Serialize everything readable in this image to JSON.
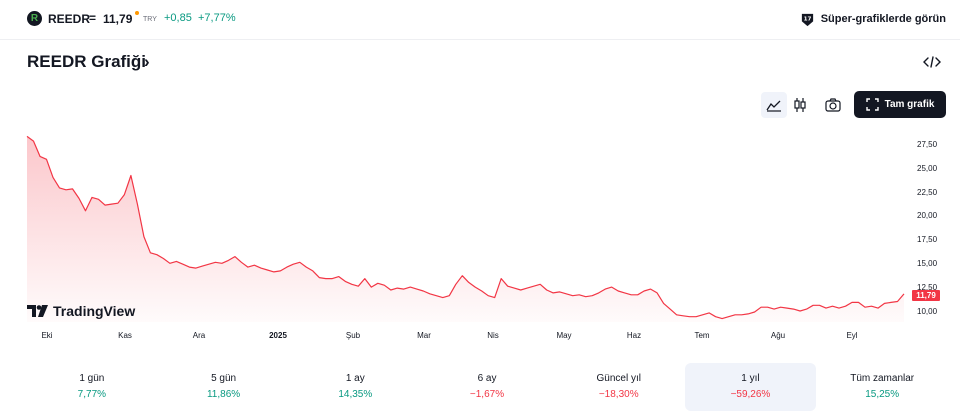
{
  "header": {
    "logo_letter": "R",
    "ticker": "REEDR",
    "equals": "=",
    "price": "11,79",
    "currency": "TRY",
    "change": "+0,85",
    "change_pct": "+7,77%",
    "super_chart_link": "Süper-grafiklerde görün"
  },
  "title": {
    "label": "REEDR Grafiği",
    "chevron": "›"
  },
  "toolbar": {
    "full_chart_label": "Tam grafik",
    "icons": [
      "area-chart-icon",
      "candlestick-icon",
      "camera-icon",
      "fullscreen-icon",
      "embed-code-icon"
    ]
  },
  "chart_data": {
    "type": "area",
    "title": "",
    "x_tick_labels": [
      "Eki",
      "Kas",
      "Ara",
      "2025",
      "Şub",
      "Mar",
      "Nis",
      "May",
      "Haz",
      "Tem",
      "Ağu",
      "Eyl"
    ],
    "y_tick_labels": [
      "27,50",
      "25,00",
      "22,50",
      "20,00",
      "17,50",
      "15,00",
      "12,50",
      "10,00"
    ],
    "ylim": [
      8.6,
      28.5
    ],
    "series": [
      {
        "values": [
          28.3,
          27.8,
          26.2,
          25.9,
          24.0,
          22.9,
          22.7,
          22.8,
          21.8,
          20.5,
          21.9,
          21.7,
          21.1,
          21.2,
          21.3,
          22.2,
          24.2,
          21.2,
          17.8,
          16.1,
          15.9,
          15.5,
          15.0,
          15.2,
          14.9,
          14.6,
          14.5,
          14.7,
          14.9,
          15.1,
          15.0,
          15.3,
          15.7,
          15.1,
          14.6,
          14.8,
          14.5,
          14.3,
          14.1,
          14.2,
          14.6,
          14.9,
          15.1,
          14.6,
          14.2,
          13.5,
          13.4,
          13.4,
          13.6,
          13.1,
          12.8,
          12.6,
          13.4,
          12.5,
          12.9,
          12.7,
          12.2,
          12.4,
          12.3,
          12.5,
          12.3,
          12.1,
          11.8,
          11.6,
          11.4,
          11.6,
          12.8,
          13.7,
          13.0,
          12.5,
          12.1,
          11.6,
          11.4,
          13.4,
          12.6,
          12.4,
          12.2,
          12.4,
          12.6,
          12.8,
          12.2,
          11.9,
          12.0,
          11.8,
          11.6,
          11.7,
          11.5,
          11.6,
          11.9,
          12.3,
          12.5,
          12.1,
          11.9,
          11.7,
          11.7,
          12.1,
          12.3,
          11.9,
          10.8,
          10.2,
          9.6,
          9.5,
          9.4,
          9.4,
          9.6,
          9.8,
          9.4,
          9.2,
          9.4,
          9.6,
          9.6,
          9.7,
          9.9,
          10.4,
          10.4,
          10.2,
          10.4,
          10.3,
          10.2,
          10.0,
          10.2,
          10.6,
          10.6,
          10.3,
          10.5,
          10.3,
          10.5,
          10.9,
          10.9,
          10.4,
          10.5,
          10.3,
          10.8,
          10.9,
          11.0,
          11.79
        ]
      }
    ],
    "last_value_label": "11,79",
    "line_color": "#f23645",
    "fill_color": "#fbd8dc",
    "grid": false,
    "watermark": "TradingView"
  },
  "periods": [
    {
      "label": "1 gün",
      "value": "7,77%",
      "sign": "pos",
      "selected": false
    },
    {
      "label": "5 gün",
      "value": "11,86%",
      "sign": "pos",
      "selected": false
    },
    {
      "label": "1 ay",
      "value": "14,35%",
      "sign": "pos",
      "selected": false
    },
    {
      "label": "6 ay",
      "value": "−1,67%",
      "sign": "neg",
      "selected": false
    },
    {
      "label": "Güncel yıl",
      "value": "−18,30%",
      "sign": "neg",
      "selected": false
    },
    {
      "label": "1 yıl",
      "value": "−59,26%",
      "sign": "neg",
      "selected": true
    },
    {
      "label": "Tüm zamanlar",
      "value": "15,25%",
      "sign": "pos",
      "selected": false
    }
  ]
}
